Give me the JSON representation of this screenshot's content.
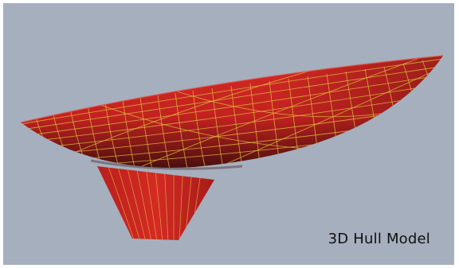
{
  "viewport": {
    "caption": "3D Hull Model",
    "background_color": "#a6afbd"
  },
  "hull": {
    "surface_color": "#d42a24",
    "shade_color": "#3a0d0c",
    "gridline_color": "#e0b640"
  }
}
